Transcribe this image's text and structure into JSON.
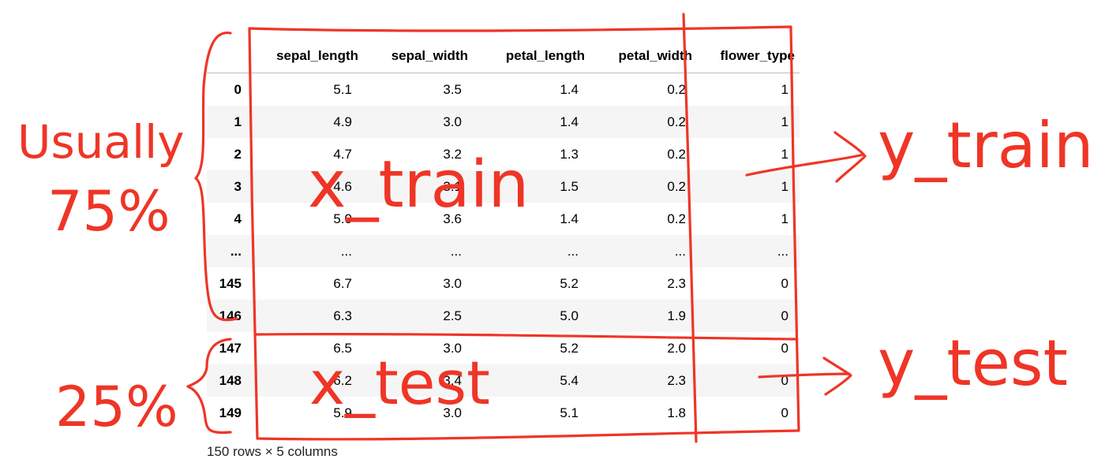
{
  "table": {
    "columns": [
      "",
      "sepal_length",
      "sepal_width",
      "petal_length",
      "petal_width",
      "flower_type"
    ],
    "rows": [
      {
        "index": "0",
        "cells": [
          "5.1",
          "3.5",
          "1.4",
          "0.2",
          "1"
        ]
      },
      {
        "index": "1",
        "cells": [
          "4.9",
          "3.0",
          "1.4",
          "0.2",
          "1"
        ]
      },
      {
        "index": "2",
        "cells": [
          "4.7",
          "3.2",
          "1.3",
          "0.2",
          "1"
        ]
      },
      {
        "index": "3",
        "cells": [
          "4.6",
          "3.1",
          "1.5",
          "0.2",
          "1"
        ]
      },
      {
        "index": "4",
        "cells": [
          "5.0",
          "3.6",
          "1.4",
          "0.2",
          "1"
        ]
      },
      {
        "index": "...",
        "cells": [
          "...",
          "...",
          "...",
          "...",
          "..."
        ]
      },
      {
        "index": "145",
        "cells": [
          "6.7",
          "3.0",
          "5.2",
          "2.3",
          "0"
        ]
      },
      {
        "index": "146",
        "cells": [
          "6.3",
          "2.5",
          "5.0",
          "1.9",
          "0"
        ]
      },
      {
        "index": "147",
        "cells": [
          "6.5",
          "3.0",
          "5.2",
          "2.0",
          "0"
        ]
      },
      {
        "index": "148",
        "cells": [
          "6.2",
          "3.4",
          "5.4",
          "2.3",
          "0"
        ]
      },
      {
        "index": "149",
        "cells": [
          "5.9",
          "3.0",
          "5.1",
          "1.8",
          "0"
        ]
      }
    ]
  },
  "footer": "150 rows × 5 columns",
  "annotations": {
    "usually": "Usually",
    "train_pct": "75%",
    "test_pct": "25%",
    "x_train": "x_train",
    "x_test": "x_test",
    "y_train": "y_train",
    "y_test": "y_test",
    "ink_color": "#ef3526"
  }
}
